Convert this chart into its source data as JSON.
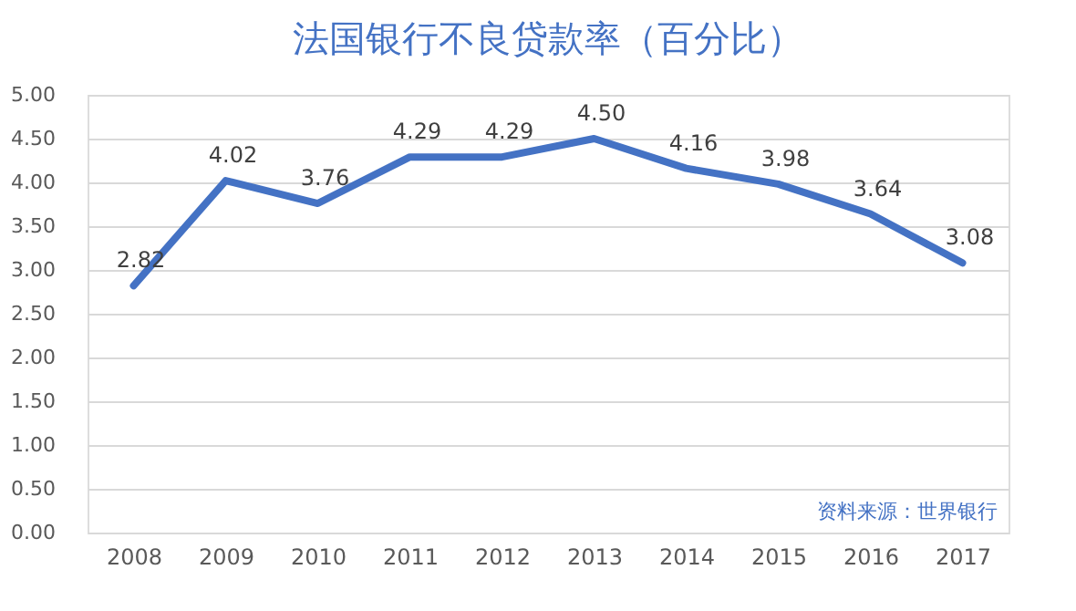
{
  "chart_data": {
    "type": "line",
    "title": "法国银行不良贷款率（百分比）",
    "categories": [
      "2008",
      "2009",
      "2010",
      "2011",
      "2012",
      "2013",
      "2014",
      "2015",
      "2016",
      "2017"
    ],
    "series": [
      {
        "color": "#4472c4",
        "values": [
          2.82,
          4.02,
          3.76,
          4.29,
          4.29,
          4.5,
          4.16,
          3.98,
          3.64,
          3.08
        ],
        "value_labels": [
          "2.82",
          "4.02",
          "3.76",
          "4.29",
          "4.29",
          "4.50",
          "4.16",
          "3.98",
          "3.64",
          "3.08"
        ]
      }
    ],
    "ylim": [
      0,
      5
    ],
    "yticks": [
      {
        "value": 0,
        "label": "0.00"
      },
      {
        "value": 0.5,
        "label": "0.50"
      },
      {
        "value": 1,
        "label": "1.00"
      },
      {
        "value": 1.5,
        "label": "1.50"
      },
      {
        "value": 2,
        "label": "2.00"
      },
      {
        "value": 2.5,
        "label": "2.50"
      },
      {
        "value": 3,
        "label": "3.00"
      },
      {
        "value": 3.5,
        "label": "3.50"
      },
      {
        "value": 4,
        "label": "4.00"
      },
      {
        "value": 4.5,
        "label": "4.50"
      },
      {
        "value": 5,
        "label": "5.00"
      }
    ],
    "grid": "y",
    "marker": "none",
    "line_style": "solid",
    "legend": false,
    "annotations": [
      "资料来源：世界银行"
    ]
  }
}
